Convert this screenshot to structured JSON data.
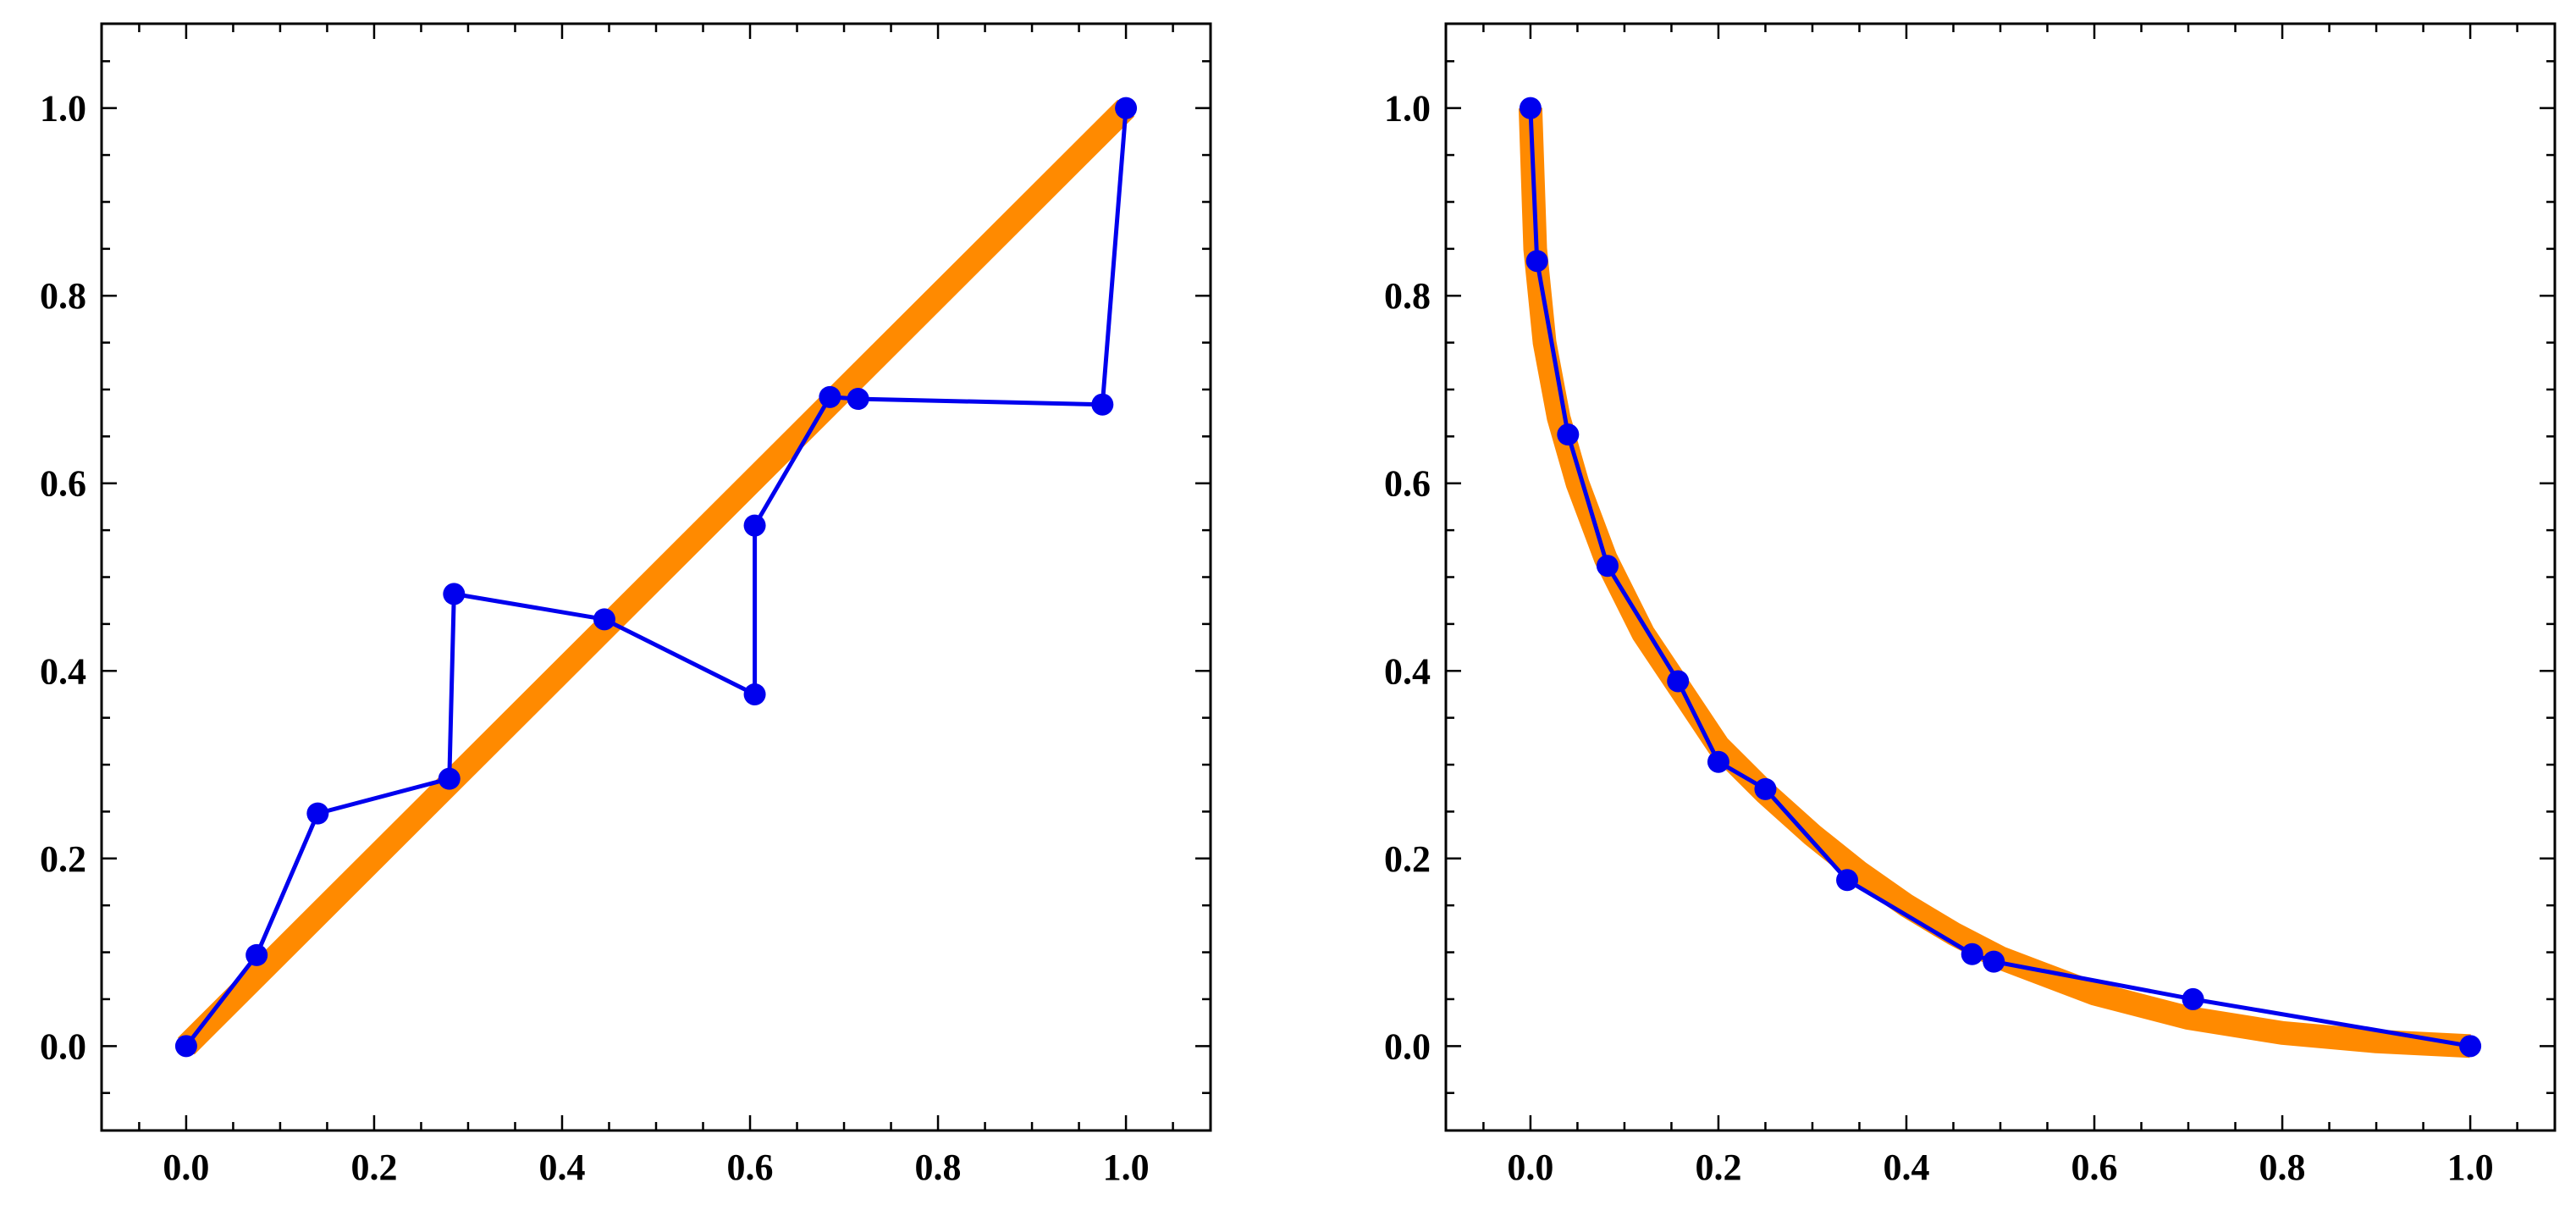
{
  "chart_data": [
    {
      "type": "line",
      "xlim": [
        -0.09,
        1.09
      ],
      "ylim": [
        -0.09,
        1.09
      ],
      "x_ticks": [
        "0.0",
        "0.2",
        "0.4",
        "0.6",
        "0.8",
        "1.0"
      ],
      "y_ticks": [
        "0.0",
        "0.2",
        "0.4",
        "0.6",
        "0.8",
        "1.0"
      ],
      "grid": false,
      "colors": {
        "reference": "#ff8a00",
        "series": "#0000ee"
      },
      "reference_curve": {
        "kind": "identity",
        "points": [
          [
            0.0,
            0.0
          ],
          [
            1.0,
            1.0
          ]
        ]
      },
      "series": [
        {
          "points": [
            [
              0.0,
              0.0
            ],
            [
              0.075,
              0.097
            ],
            [
              0.14,
              0.248
            ],
            [
              0.28,
              0.285
            ],
            [
              0.285,
              0.482
            ],
            [
              0.445,
              0.455
            ],
            [
              0.605,
              0.375
            ],
            [
              0.605,
              0.555
            ],
            [
              0.685,
              0.692
            ],
            [
              0.715,
              0.69
            ],
            [
              0.975,
              0.684
            ],
            [
              1.0,
              1.0
            ]
          ]
        }
      ]
    },
    {
      "type": "line",
      "xlim": [
        -0.09,
        1.09
      ],
      "ylim": [
        -0.09,
        1.09
      ],
      "x_ticks": [
        "0.0",
        "0.2",
        "0.4",
        "0.6",
        "0.8",
        "1.0"
      ],
      "y_ticks": [
        "0.0",
        "0.2",
        "0.4",
        "0.6",
        "0.8",
        "1.0"
      ],
      "grid": false,
      "colors": {
        "reference": "#ff8a00",
        "series": "#0000ee"
      },
      "reference_curve": {
        "kind": "convex-decreasing",
        "points": [
          [
            0.0,
            1.0
          ],
          [
            0.005,
            0.85
          ],
          [
            0.015,
            0.75
          ],
          [
            0.03,
            0.67
          ],
          [
            0.05,
            0.6
          ],
          [
            0.08,
            0.52
          ],
          [
            0.12,
            0.44
          ],
          [
            0.16,
            0.38
          ],
          [
            0.2,
            0.32
          ],
          [
            0.25,
            0.27
          ],
          [
            0.3,
            0.225
          ],
          [
            0.35,
            0.185
          ],
          [
            0.4,
            0.15
          ],
          [
            0.45,
            0.12
          ],
          [
            0.5,
            0.094
          ],
          [
            0.6,
            0.056
          ],
          [
            0.7,
            0.03
          ],
          [
            0.8,
            0.014
          ],
          [
            0.9,
            0.005
          ],
          [
            1.0,
            0.0
          ]
        ]
      },
      "series": [
        {
          "points": [
            [
              0.0,
              1.0
            ],
            [
              0.007,
              0.837
            ],
            [
              0.04,
              0.652
            ],
            [
              0.082,
              0.512
            ],
            [
              0.157,
              0.389
            ],
            [
              0.2,
              0.303
            ],
            [
              0.25,
              0.274
            ],
            [
              0.337,
              0.177
            ],
            [
              0.47,
              0.098
            ],
            [
              0.493,
              0.09
            ],
            [
              0.705,
              0.05
            ],
            [
              1.0,
              0.0
            ]
          ]
        }
      ]
    }
  ]
}
